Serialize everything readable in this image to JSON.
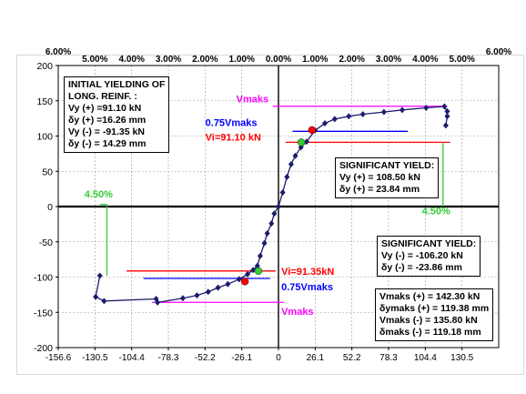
{
  "chart_data": {
    "type": "scatter",
    "title": "",
    "xlabel": "",
    "ylabel": "",
    "xlim": [
      -156.6,
      156.6
    ],
    "ylim": [
      -200,
      200
    ],
    "x_ticks": [
      "-156.6",
      "-130.5",
      "-104.4",
      "-78.3",
      "-52.2",
      "-26.1",
      "0",
      "26.1",
      "52.2",
      "78.3",
      "104.4",
      "130.5"
    ],
    "y_ticks": [
      "200",
      "150",
      "100",
      "50",
      "0",
      "-50",
      "-100",
      "-150",
      "-200"
    ],
    "top_ticks": [
      "6.00%",
      "5.00%",
      "4.00%",
      "3.00%",
      "2.00%",
      "1.00%",
      "0.00%",
      "1.00%",
      "2.00%",
      "3.00%",
      "4.00%",
      "5.00%",
      "6.00%"
    ],
    "series": [
      {
        "values": [
          [
            -127,
            -98
          ],
          [
            -130,
            -128
          ],
          [
            -124,
            -134
          ],
          [
            -87,
            -131
          ],
          [
            -86,
            -136
          ],
          [
            -68,
            -130
          ],
          [
            -58,
            -126
          ],
          [
            -50,
            -121
          ],
          [
            -43,
            -115
          ],
          [
            -36,
            -110
          ],
          [
            -28,
            -103
          ],
          [
            -22,
            -96
          ],
          [
            -18,
            -90
          ],
          [
            -15,
            -84
          ],
          [
            -13,
            -70
          ],
          [
            -10,
            -52
          ],
          [
            -8,
            -38
          ],
          [
            -5,
            -24
          ],
          [
            -3,
            -10
          ],
          [
            0,
            0
          ],
          [
            3,
            20
          ],
          [
            6,
            42
          ],
          [
            9,
            60
          ],
          [
            12,
            72
          ],
          [
            16,
            84
          ],
          [
            20,
            92
          ],
          [
            26,
            108
          ],
          [
            33,
            118
          ],
          [
            40,
            124
          ],
          [
            50,
            128
          ],
          [
            60,
            131
          ],
          [
            75,
            134
          ],
          [
            88,
            137
          ],
          [
            105,
            140
          ],
          [
            118,
            142
          ],
          [
            120,
            135
          ],
          [
            120,
            128
          ],
          [
            119,
            115
          ]
        ],
        "color": "#1c1c6e"
      }
    ],
    "annotations": {
      "box1": [
        "INITIAL YIELDING OF",
        "LONG. REINF. :",
        "Vy (+) =91.10 kN",
        "δy (+) =16.26 mm",
        "Vy (-) = -91.35 kN",
        "δy (-) = 14.29 mm"
      ],
      "box2": [
        "SIGNIFICANT YIELD:",
        "Vy (+) = 108.50 kN",
        "δy (+) = 23.84 mm"
      ],
      "box3": [
        "SIGNIFICANT YIELD:",
        "Vy (-) = -106.20 kN",
        "δy (-) = -23.86 mm"
      ],
      "box4": [
        "Vmaks (+) = 142.30 kN",
        "δymaks (+) = 119.38 mm",
        "Vmaks (-) = 135.80 kN",
        "δmaks (-) = 119.18 mm"
      ],
      "vmaks_pos": "Vmaks",
      "vmaks_neg": "Vmaks",
      "v075_pos": "0.75Vmaks",
      "v075_neg": "0.75Vmaks",
      "vi_pos": "Vi=91.10 kN",
      "vi_neg": "Vi=91.35kN",
      "drift_pos": "4.50%",
      "drift_neg": "4.50%"
    },
    "colors": {
      "magenta": "#ff00ff",
      "blue": "#0000ff",
      "red": "#ff0000",
      "green": "#33cc33",
      "curve": "#1c1c6e"
    },
    "grid": true
  }
}
